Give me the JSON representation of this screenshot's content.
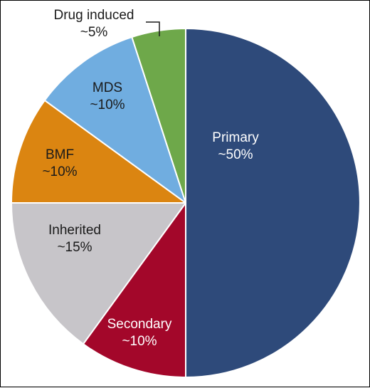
{
  "chart_data": {
    "type": "pie",
    "title": "",
    "start_angle_deg": 0,
    "direction": "clockwise",
    "slices": [
      {
        "label": "Primary",
        "pct_label": "~50%",
        "value": 50,
        "color": "#2e4a7a",
        "text_color": "#ffffff"
      },
      {
        "label": "Secondary",
        "pct_label": "~10%",
        "value": 10,
        "color": "#a3072a",
        "text_color": "#ffffff"
      },
      {
        "label": "Inherited",
        "pct_label": "~15%",
        "value": 15,
        "color": "#c7c5c9",
        "text_color": "#1a1a1a"
      },
      {
        "label": "BMF",
        "pct_label": "~10%",
        "value": 10,
        "color": "#db8511",
        "text_color": "#1a1a1a"
      },
      {
        "label": "MDS",
        "pct_label": "~10%",
        "value": 10,
        "color": "#70ade0",
        "text_color": "#1a1a1a"
      },
      {
        "label": "Drug induced",
        "pct_label": "~5%",
        "value": 5,
        "color": "#6ea84a",
        "text_color": "#1a1a1a"
      }
    ]
  }
}
